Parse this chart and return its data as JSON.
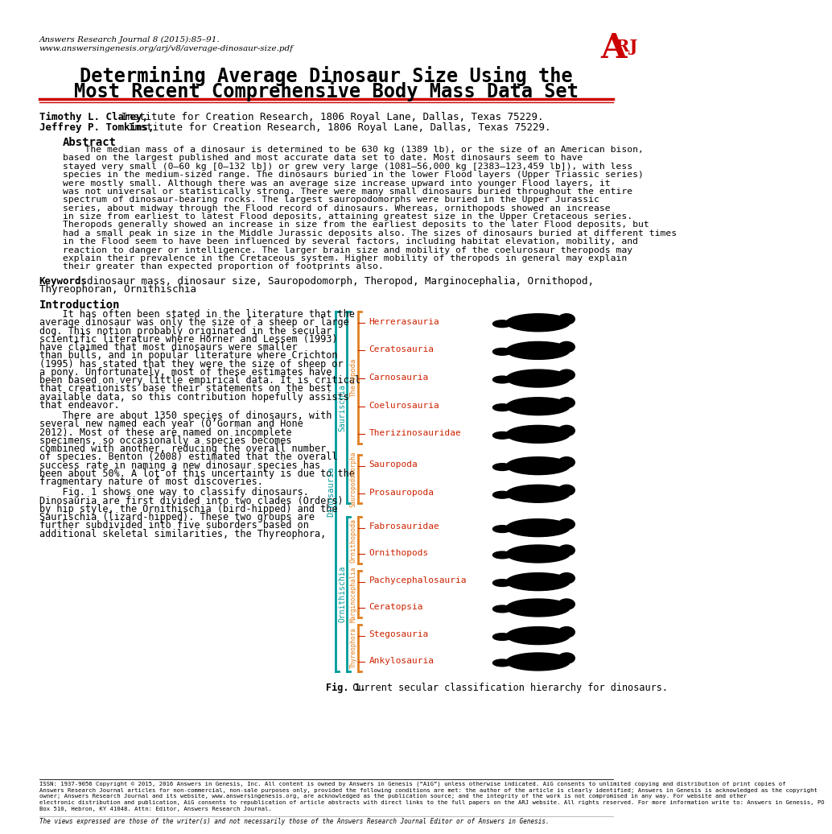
{
  "page_title_line1": "Determining Average Dinosaur Size Using the",
  "page_title_line2": "Most Recent Comprehensive Body Mass Data Set",
  "journal_line1": "Answers Research Journal 8 (2015):85–91.",
  "journal_line2": "www.answersingenesis.org/arj/v8/average-dinosaur-size.pdf",
  "author1_bold": "Timothy L. Clarey,",
  "author1_rest": " Institute for Creation Research, 1806 Royal Lane, Dallas, Texas 75229.",
  "author2_bold": "Jeffrey P. Tomkins,",
  "author2_rest": " Institute for Creation Research, 1806 Royal Lane, Dallas, Texas 75229.",
  "abstract_title": "Abstract",
  "abstract_text": "    The median mass of a dinosaur is determined to be 630 kg (1389 lb), or the size of an American bison,\nbased on the largest published and most accurate data set to date. Most dinosaurs seem to have\nstayed very small (0–60 kg [0–132 lb]) or grew very large (1081–56,000 kg [2383–123,459 lb]), with less\nspecies in the medium-sized range. The dinosaurs buried in the lower Flood layers (Upper Triassic series)\nwere mostly small. Although there was an average size increase upward into younger Flood layers, it\nwas not universal or statistically strong. There were many small dinosaurs buried throughout the entire\nspectrum of dinosaur-bearing rocks. The largest sauropodomorphs were buried in the Upper Jurassic\nseries, about midway through the Flood record of dinosaurs. Whereas, ornithopods showed an increase\nin size from earliest to latest Flood deposits, attaining greatest size in the Upper Cretaceous series.\nTheropods generally showed an increase in size from the earliest deposits to the later Flood deposits, but\nhad a small peak in size in the Middle Jurassic deposits also. The sizes of dinosaurs buried at different times\nin the Flood seem to have been influenced by several factors, including habitat elevation, mobility, and\nreaction to danger or intelligence. The larger brain size and mobility of the coelurosaur theropods may\nexplain their prevalence in the Cretaceous system. Higher mobility of theropods in general may explain\ntheir greater than expected proportion of footprints also.",
  "keywords_bold": "Keywords",
  "keywords_text": ": dinosaur mass, dinosaur size, Sauropodomorph, Theropod, Marginocephalia, Ornithopod,",
  "keywords_line2": "Thyreophoran, Ornithischia",
  "intro_title": "Introduction",
  "intro_para1_lines": [
    "    It has often been stated in the literature that the",
    "average dinosaur was only the size of a sheep or large",
    "dog. This notion probably originated in the secular",
    "scientific literature where Horner and Lessem (1993)",
    "have claimed that most dinosaurs were smaller",
    "than bulls, and in popular literature where Crichton",
    "(1995) has stated that they were the size of sheep or",
    "a pony. Unfortunately, most of these estimates have",
    "been based on very little empirical data. It is critical",
    "that creationists base their statements on the best",
    "available data, so this contribution hopefully assists",
    "that endeavor."
  ],
  "intro_para2_lines": [
    "    There are about 1350 species of dinosaurs, with",
    "several new named each year (O’Gorman and Hone",
    "2012). Most of these are named on incomplete",
    "specimens, so occasionally a species becomes",
    "combined with another, reducing the overall number",
    "of species. Benton (2008) estimated that the overall",
    "success rate in naming a new dinosaur species has",
    "been about 50%. A lot of this uncertainty is due to the",
    "fragmentary nature of most discoveries."
  ],
  "intro_para3_lines": [
    "    Fig. 1 shows one way to classify dinosaurs.",
    "Dinosauria are first divided into two clades (Orders)",
    "by hip style, the Ornithischia (bird-hipped) and the",
    "Saurischia (lizard-hipped). These two groups are",
    "further subdivided into five suborders based on",
    "additional skeletal similarities, the Thyreophora,"
  ],
  "fig_caption_bold": "Fig. 1.",
  "fig_caption_text": " Current secular classification hierarchy for dinosaurs.",
  "footer_issn": "ISSN: 1937-9056 Copyright © 2015, 2016 Answers in Genesis, Inc. All content is owned by Answers in Genesis (“AiG”) unless otherwise indicated. AiG consents to unlimited copying and distribution of print copies of\nAnswers Research Journal articles for non-commercial, non-sale purposes only, provided the following conditions are met: the author of the article is clearly identified; Answers in Genesis is acknowledged as the copyright\nowner; Answers Research Journal and its website, www.answersingenesis.org, are acknowledged as the publication source; and the integrity of the work is not compromised in any way. For website and other\nelectronic distribution and publication, AiG consents to republication of article abstracts with direct links to the full papers on the ARJ website. All rights reserved. For more information write to: Answers in Genesis, PO\nBox 510, Hebron, KY 41048. Attn: Editor, Answers Research Journal.",
  "footer_views": "The views expressed are those of the writer(s) and not necessarily those of the Answers Research Journal Editor or of Answers in Genesis.",
  "background_color": "#ffffff",
  "red_color": "#cc0000",
  "teal_color": "#009999",
  "orange_color": "#e08020",
  "taxa_color": "#cc2200",
  "theropoda_taxa": [
    "Herrerasauria",
    "Ceratosauria",
    "Carnosauria",
    "Coelurosauria",
    "Therizinosauridae"
  ],
  "sauropoda_taxa": [
    "Sauropoda",
    "Prosauropoda"
  ],
  "ornithopoda_taxa": [
    "Fabrosauridae",
    "Ornithopods"
  ],
  "marginocephalia_taxa": [
    "Pachycephalosauria",
    "Ceratopsia"
  ],
  "thyreophora_taxa": [
    "Stegosauria",
    "Ankylosauria"
  ]
}
